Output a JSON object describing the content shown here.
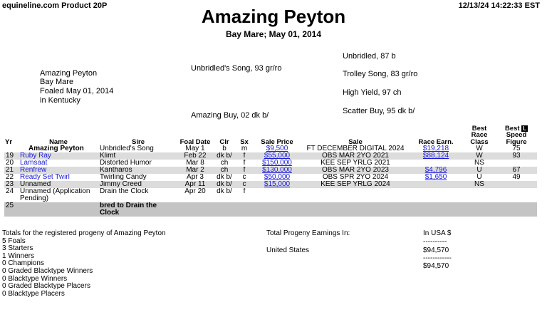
{
  "header": {
    "left": "equineline.com Product 20P",
    "right": "12/13/24 14:22:33 EST",
    "title": "Amazing Peyton",
    "subtitle": "Bay Mare; May 01, 2014"
  },
  "pedigree": {
    "subject": [
      "Amazing Peyton",
      "Bay Mare",
      "Foaled May 01, 2014",
      "in Kentucky"
    ],
    "sire": "Unbridled's Song, 93 gr/ro",
    "dam": "Amazing Buy, 02 dk b/",
    "grandparents": [
      "Unbridled, 87 b",
      "Trolley Song, 83 gr/ro",
      "High Yield, 97 ch",
      "Scatter Buy, 95 dk b/"
    ]
  },
  "table": {
    "headers": [
      "Yr",
      "Name",
      "Sire",
      "Foal Date",
      "Clr",
      "Sx",
      "Sale Price",
      "Sale",
      "Race Earn.",
      "Best Race Class",
      {
        "pre": "Best",
        "icon": "L",
        "post": "Speed Figure"
      }
    ],
    "rows": [
      [
        null,
        "Amazing Peyton",
        "Unbridled's Song",
        "May 1",
        "b",
        "m",
        "$9,500",
        "FT DECEMBER DIGITAL 2024",
        "$19,218",
        "W",
        "75"
      ],
      [
        "19",
        "Ruby Ray",
        "Klimt",
        "Feb 22",
        "dk b/",
        "f",
        "$55,000",
        "OBS MAR 2YO 2021",
        "$88,124",
        "W",
        "93"
      ],
      [
        "20",
        "Lamsaat",
        "Distorted Humor",
        "Mar 8",
        "ch",
        "f",
        "$150,000",
        "KEE SEP YRLG 2021",
        null,
        "NS",
        null
      ],
      [
        "21",
        "Renfrew",
        "Kantharos",
        "Mar 2",
        "ch",
        "f",
        "$130,000",
        "OBS MAR 2YO 2023",
        "$4,796",
        "U",
        "67"
      ],
      [
        "22",
        "Ready Set Twirl",
        "Twirling Candy",
        "Apr 3",
        "dk b/",
        "c",
        "$50,000",
        "OBS SPR 2YO 2024",
        "$1,650",
        "U",
        "49"
      ],
      [
        "23",
        "Unnamed",
        "Jimmy Creed",
        "Apr 11",
        "dk b/",
        "c",
        "$15,000",
        "KEE SEP YRLG 2024",
        null,
        "NS",
        null
      ],
      [
        "24",
        "Unnamed (Application Pending)",
        "Drain the Clock",
        "Apr 20",
        "dk b/",
        "f",
        null,
        null,
        null,
        null,
        null
      ],
      [
        "25",
        null,
        "bred to Drain the Clock",
        null,
        null,
        null,
        null,
        null,
        null,
        null,
        null
      ]
    ]
  },
  "totals": {
    "left": [
      "Totals for the registered progeny of Amazing Peyton",
      "5 Foals",
      "3 Starters",
      "1 Winners",
      "0 Champions",
      "0 Graded Blacktype Winners",
      "0 Blacktype Winners",
      "0 Graded Blacktype Placers",
      "0 Blacktype Placers"
    ],
    "middle": [
      "Total Progeny Earnings In:",
      "United States"
    ],
    "right": [
      "In USA $",
      "----------",
      "$94,570",
      "------------",
      "$94,570"
    ]
  }
}
